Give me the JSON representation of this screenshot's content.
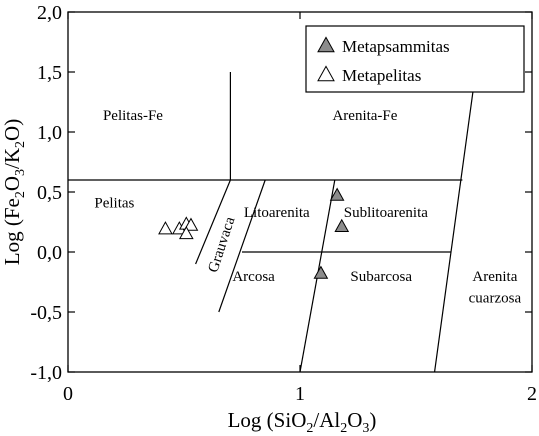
{
  "chart_data": {
    "type": "scatter",
    "title": "",
    "xlabel": "Log (SiO",
    "xlabel_sub1": "2",
    "xlabel_mid": "/Al",
    "xlabel_sub2": "2",
    "xlabel_mid2": "O",
    "xlabel_sub3": "3",
    "xlabel_end": ")",
    "ylabel": "Log (Fe",
    "ylabel_sub1": "2",
    "ylabel_mid": "O",
    "ylabel_sub2": "3",
    "ylabel_mid2": "/K",
    "ylabel_sub3": "2",
    "ylabel_end": "O)",
    "xlim": [
      0,
      2
    ],
    "ylim": [
      -1.0,
      2.0
    ],
    "x_ticks": [
      {
        "value": 0,
        "label": "0"
      },
      {
        "value": 1,
        "label": "1"
      },
      {
        "value": 2,
        "label": "2"
      }
    ],
    "y_ticks": [
      {
        "value": -1.0,
        "label": "-1,0"
      },
      {
        "value": -0.5,
        "label": "-0,5"
      },
      {
        "value": 0.0,
        "label": "0,0"
      },
      {
        "value": 0.5,
        "label": "0,5"
      },
      {
        "value": 1.0,
        "label": "1,0"
      },
      {
        "value": 1.5,
        "label": "1,5"
      },
      {
        "value": 2.0,
        "label": "2,0"
      }
    ],
    "grid": false,
    "legend_position": "top-right",
    "series": [
      {
        "name": "Metapsammitas",
        "marker": "triangle-filled",
        "color": "#8c8c8c",
        "points": [
          [
            1.16,
            0.47
          ],
          [
            1.18,
            0.21
          ],
          [
            1.09,
            -0.18
          ]
        ]
      },
      {
        "name": "Metapelitas",
        "marker": "triangle-open",
        "color": "#ffffff",
        "points": [
          [
            0.42,
            0.19
          ],
          [
            0.48,
            0.19
          ],
          [
            0.51,
            0.23
          ],
          [
            0.53,
            0.22
          ],
          [
            0.51,
            0.15
          ]
        ]
      }
    ],
    "boundaries": [
      [
        [
          0.0,
          0.6
        ],
        [
          1.7,
          0.6
        ]
      ],
      [
        [
          0.7,
          0.6
        ],
        [
          0.7,
          1.5
        ]
      ],
      [
        [
          0.7,
          0.6
        ],
        [
          0.55,
          -0.1
        ]
      ],
      [
        [
          0.85,
          0.6
        ],
        [
          0.65,
          -0.5
        ]
      ],
      [
        [
          1.15,
          0.6
        ],
        [
          1.0,
          -1.0
        ]
      ],
      [
        [
          0.75,
          0.0
        ],
        [
          1.65,
          0.0
        ]
      ],
      [
        [
          1.75,
          1.4
        ],
        [
          1.58,
          -1.0
        ]
      ]
    ],
    "field_labels": [
      {
        "text": "Pelitas-Fe",
        "x": 0.28,
        "y": 1.1
      },
      {
        "text": "Arenita-Fe",
        "x": 1.28,
        "y": 1.1
      },
      {
        "text": "Pelitas",
        "x": 0.2,
        "y": 0.37
      },
      {
        "text": "Litoarenita",
        "x": 0.9,
        "y": 0.29
      },
      {
        "text": "Sublitoarenita",
        "x": 1.37,
        "y": 0.29
      },
      {
        "text": "Grauvaca",
        "x": 0.68,
        "y": 0.05,
        "rotate": -72
      },
      {
        "text": "Arcosa",
        "x": 0.8,
        "y": -0.24
      },
      {
        "text": "Subarcosa",
        "x": 1.35,
        "y": -0.24
      },
      {
        "text": "Arenita",
        "x": 1.84,
        "y": -0.24
      },
      {
        "text": "cuarzosa",
        "x": 1.84,
        "y": -0.42
      }
    ]
  }
}
